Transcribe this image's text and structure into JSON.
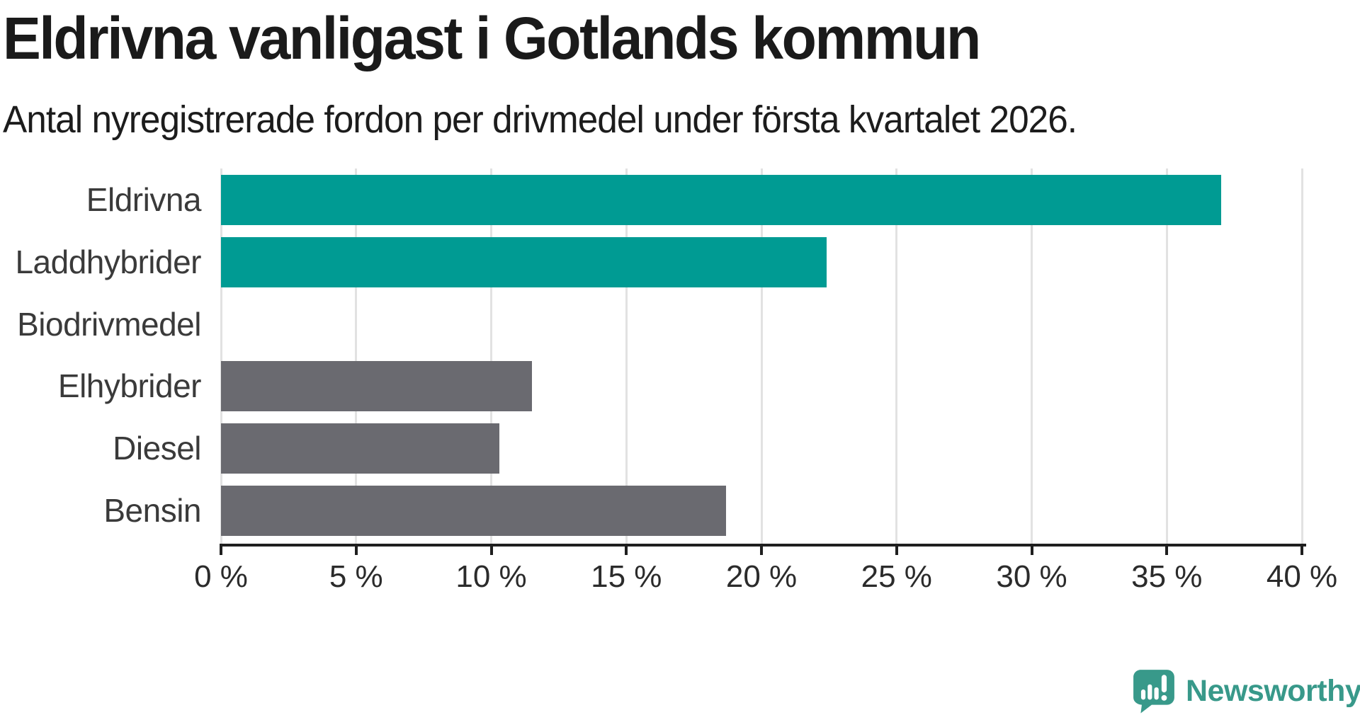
{
  "header": {
    "title": "Eldrivna vanligast i Gotlands kommun",
    "subtitle": "Antal nyregistrerade fordon per drivmedel under första kvartalet 2026."
  },
  "chart_data": {
    "type": "bar",
    "orientation": "horizontal",
    "title": "Eldrivna vanligast i Gotlands kommun",
    "subtitle": "Antal nyregistrerade fordon per drivmedel under första kvartalet 2026.",
    "categories": [
      "Eldrivna",
      "Laddhybrider",
      "Biodrivmedel",
      "Elhybrider",
      "Diesel",
      "Bensin"
    ],
    "values": [
      37,
      22.4,
      0,
      11.5,
      10.3,
      18.7
    ],
    "unit": "%",
    "xlim": [
      0,
      40
    ],
    "x_ticks": [
      0,
      5,
      10,
      15,
      20,
      25,
      30,
      35,
      40
    ],
    "x_tick_labels": [
      "0 %",
      "5 %",
      "10 %",
      "15 %",
      "20 %",
      "25 %",
      "30 %",
      "35 %",
      "40 %"
    ],
    "bar_colors": [
      "#009b93",
      "#009b93",
      "#009b93",
      "#6a6a70",
      "#6a6a70",
      "#6a6a70"
    ],
    "colors": {
      "highlight": "#009b93",
      "default": "#6a6a70",
      "gridline": "#e2e2e2",
      "axis": "#1f1f1f"
    },
    "grid": "vertical-only",
    "legend": "none"
  },
  "branding": {
    "logo_text": "Newsworthy",
    "logo_color": "#38998a",
    "logo_icon": "newsworthy-bubble-chart-icon"
  }
}
